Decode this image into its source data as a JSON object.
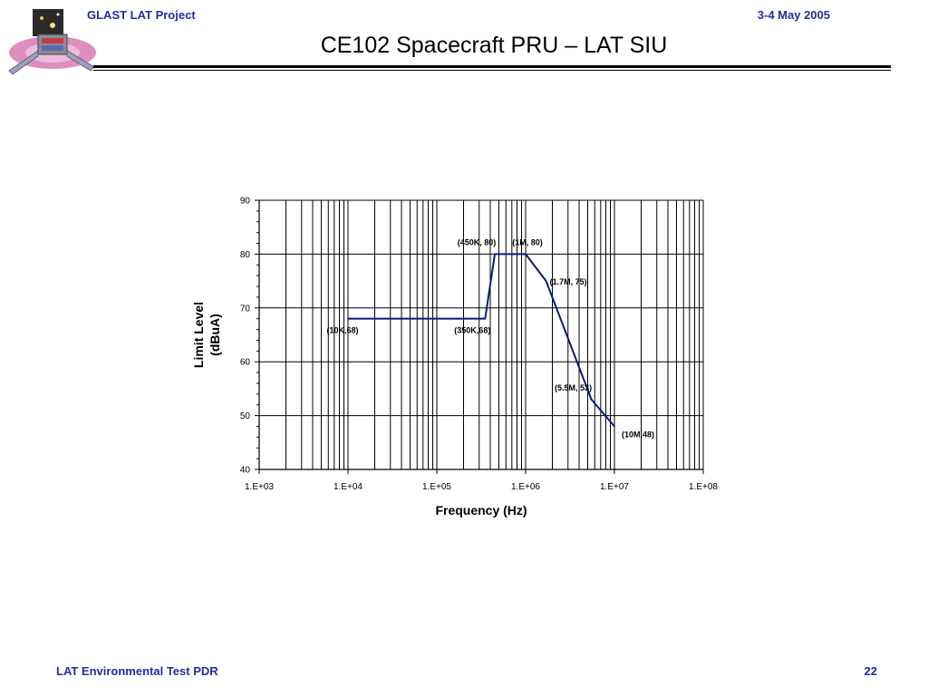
{
  "header": {
    "project": "GLAST LAT Project",
    "date": "3-4 May 2005",
    "title": "CE102 Spacecraft PRU – LAT SIU"
  },
  "footer": {
    "left": "LAT Environmental Test PDR",
    "page": "22"
  },
  "logo": {
    "icon": "glast-satellite-logo-icon"
  },
  "colors": {
    "header_text": "#1f2fa0",
    "series_line": "#0a1a7a",
    "grid": "#000000"
  },
  "chart_data": {
    "type": "line",
    "xlabel": "Frequency (Hz)",
    "ylabel_lines": [
      "Limit Level",
      "(dBuA)"
    ],
    "x_scale": "log",
    "xlim": [
      1000,
      100000000
    ],
    "ylim": [
      40,
      90
    ],
    "x_tick_values": [
      1000,
      10000,
      100000,
      1000000,
      10000000,
      100000000
    ],
    "x_tick_labels": [
      "1.E+03",
      "1.E+04",
      "1.E+05",
      "1.E+06",
      "1.E+07",
      "1.E+08"
    ],
    "y_tick_values": [
      40,
      50,
      60,
      70,
      80,
      90
    ],
    "y_tick_labels": [
      "40",
      "50",
      "60",
      "70",
      "80",
      "90"
    ],
    "grid": true,
    "series": [
      {
        "x": [
          10000,
          350000,
          450000,
          1000000,
          1700000,
          5500000,
          10000000
        ],
        "y": [
          68,
          68,
          80,
          80,
          75,
          53,
          48
        ]
      }
    ],
    "annotations": [
      {
        "text": "(10K,68)",
        "x": 10000,
        "y": 68,
        "pos": "below"
      },
      {
        "text": "(350K,68)",
        "x": 350000,
        "y": 68,
        "pos": "below-left"
      },
      {
        "text": "(450K, 80)",
        "x": 450000,
        "y": 80,
        "pos": "above-left"
      },
      {
        "text": "(1M, 80)",
        "x": 1000000,
        "y": 80,
        "pos": "above"
      },
      {
        "text": "(1.7M, 75)",
        "x": 1700000,
        "y": 75,
        "pos": "right"
      },
      {
        "text": "(5.5M, 53)",
        "x": 5500000,
        "y": 53,
        "pos": "above-left"
      },
      {
        "text": "(10M,48)",
        "x": 10000000,
        "y": 48,
        "pos": "below-right"
      }
    ]
  }
}
